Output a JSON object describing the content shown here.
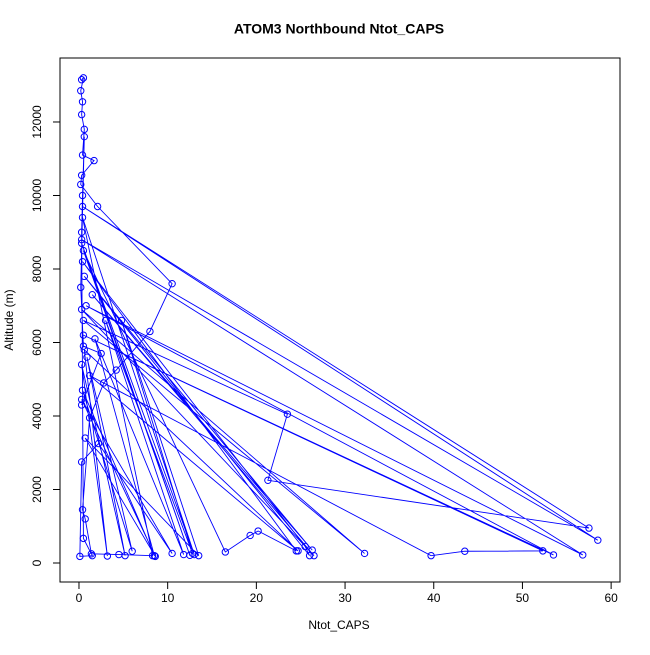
{
  "chart_data": {
    "type": "line",
    "title": "ATOM3 Northbound Ntot_CAPS",
    "xlabel": "Ntot_CAPS",
    "ylabel": "Altitude (m)",
    "color": "#0000ff",
    "markers": true,
    "x": [
      0.3,
      0.5,
      0.2,
      0.4,
      0.3,
      0.6,
      0.4,
      1.7,
      0.3,
      0.2,
      2.1,
      10.5,
      8.0,
      4.2,
      2.8,
      1.2,
      0.4,
      0.7,
      1.4,
      4.5,
      8.3,
      0.4,
      13.0,
      0.3,
      12.5,
      0.5,
      16.5,
      19.3,
      20.2,
      24.5,
      0.4,
      25.5,
      26.0,
      0.6,
      26.3,
      1.5,
      26.5,
      0.3,
      32.2,
      0.5,
      23.5,
      21.3,
      57.5,
      0.4,
      58.5,
      0.3,
      56.8,
      0.8,
      53.5,
      0.5,
      52.3,
      43.5,
      39.7,
      1.2,
      24.7,
      0.6,
      3.2,
      0.3,
      5.2,
      0.9,
      6.0,
      0.4,
      8.5,
      1.8,
      11.8,
      3.0,
      12.8,
      4.8,
      13.5,
      0.7,
      8.6,
      0.3,
      10.5,
      2.2,
      0.3,
      0.1,
      1.5,
      0.5,
      0.3,
      0.4,
      0.6,
      0.2,
      0.5,
      2.5,
      0.3
    ],
    "values": [
      13150,
      13200,
      12850,
      12550,
      12200,
      11800,
      11100,
      10950,
      10550,
      10300,
      9700,
      7600,
      6300,
      5250,
      4900,
      3950,
      1450,
      1200,
      250,
      230,
      200,
      9400,
      230,
      8700,
      210,
      8500,
      300,
      750,
      870,
      330,
      8200,
      450,
      200,
      7800,
      350,
      7300,
      200,
      6900,
      260,
      6600,
      4050,
      2250,
      950,
      9700,
      620,
      8800,
      220,
      7000,
      220,
      6200,
      330,
      320,
      200,
      5100,
      330,
      5800,
      190,
      5400,
      200,
      5600,
      320,
      4700,
      200,
      6100,
      230,
      6600,
      260,
      6600,
      200,
      3400,
      180,
      4450,
      260,
      3250,
      2750,
      180,
      200,
      670,
      9000,
      10000,
      11600,
      7500,
      5900,
      5700,
      4300
    ],
    "xlim": [
      -2.14,
      61.0
    ],
    "ylim": [
      -517,
      13741
    ],
    "xticks": [
      0,
      10,
      20,
      30,
      40,
      50,
      60
    ],
    "yticks": [
      0,
      2000,
      4000,
      6000,
      8000,
      10000,
      12000
    ]
  }
}
